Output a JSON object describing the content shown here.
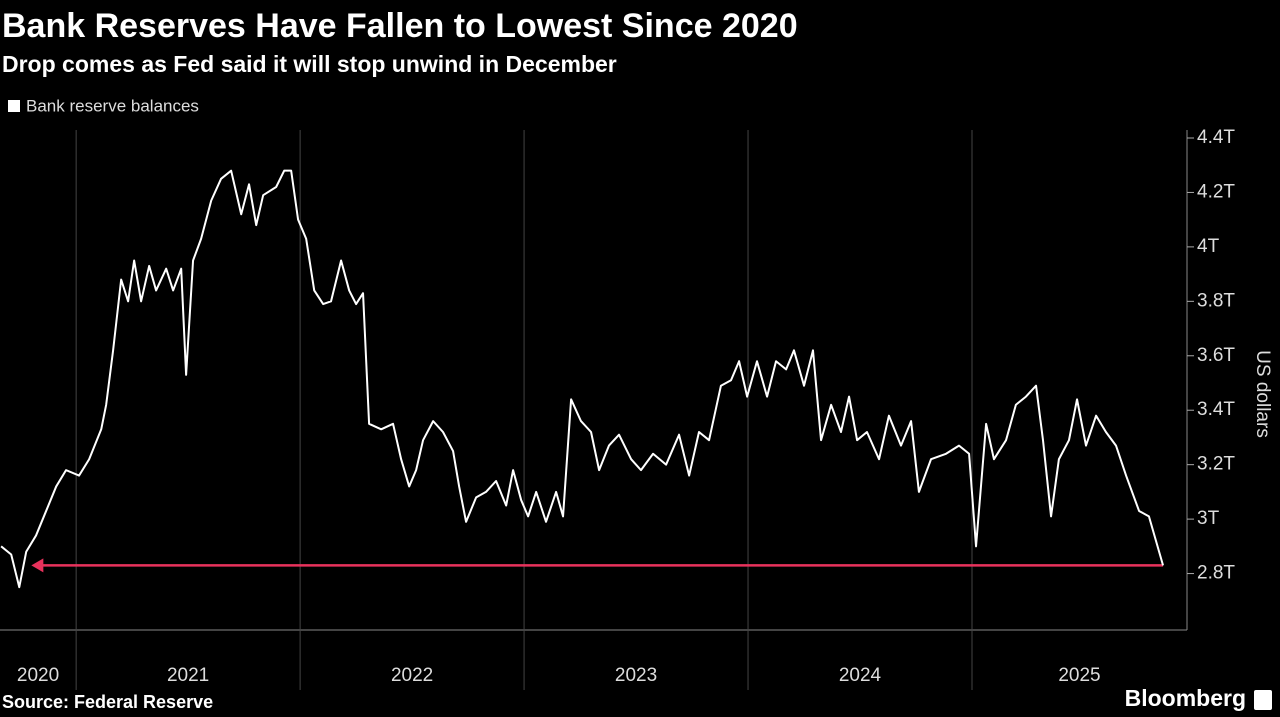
{
  "chart_data": {
    "type": "line",
    "title": "Bank Reserves Have Fallen to Lowest Since 2020",
    "subtitle": "Drop comes as Fed said it will stop unwind in December",
    "y_axis_label": "US dollars",
    "source": "Source: Federal Reserve",
    "brand": "Bloomberg",
    "xlim": [
      2020.66,
      2025.96
    ],
    "xticks": [
      2020,
      2021,
      2022,
      2023,
      2024,
      2025
    ],
    "ylim": [
      2.6,
      4.4
    ],
    "yticks": [
      {
        "value": 2.8,
        "label": "2.8T"
      },
      {
        "value": 3,
        "label": "3T"
      },
      {
        "value": 3.2,
        "label": "3.2T"
      },
      {
        "value": 3.4,
        "label": "3.4T"
      },
      {
        "value": 3.6,
        "label": "3.6T"
      },
      {
        "value": 3.8,
        "label": "3.8T"
      },
      {
        "value": 4,
        "label": "4T"
      },
      {
        "value": 4.2,
        "label": "4.2T"
      },
      {
        "value": 4.4,
        "label": "4.4T"
      }
    ],
    "grid": true,
    "arrow": {
      "from": 2025.853,
      "to": 2020.8,
      "value": 2.83,
      "color": "#e8325c"
    },
    "series": [
      {
        "name": "Bank reserve balances",
        "color": "#ffffff",
        "x": [
          2020.665,
          2020.71,
          2020.746,
          2020.777,
          2020.821,
          2020.866,
          2020.911,
          2020.955,
          2021.013,
          2021.058,
          2021.112,
          2021.134,
          2021.165,
          2021.201,
          2021.232,
          2021.259,
          2021.29,
          2021.326,
          2021.357,
          2021.402,
          2021.433,
          2021.469,
          2021.491,
          2021.522,
          2021.558,
          2021.603,
          2021.647,
          2021.692,
          2021.737,
          2021.772,
          2021.804,
          2021.835,
          2021.893,
          2021.929,
          2021.96,
          2021.991,
          2022.027,
          2022.063,
          2022.103,
          2022.138,
          2022.183,
          2022.219,
          2022.25,
          2022.281,
          2022.308,
          2022.362,
          2022.415,
          2022.451,
          2022.487,
          2022.518,
          2022.549,
          2022.594,
          2022.638,
          2022.683,
          2022.71,
          2022.741,
          2022.786,
          2022.83,
          2022.875,
          2022.92,
          2022.951,
          2022.987,
          2023.018,
          2023.054,
          2023.098,
          2023.143,
          2023.174,
          2023.21,
          2023.254,
          2023.299,
          2023.335,
          2023.379,
          2023.424,
          2023.478,
          2023.522,
          2023.576,
          2023.634,
          2023.692,
          2023.737,
          2023.781,
          2023.826,
          2023.879,
          2023.924,
          2023.96,
          2023.996,
          2024.04,
          2024.085,
          2024.125,
          2024.17,
          2024.205,
          2024.25,
          2024.29,
          2024.326,
          2024.371,
          2024.415,
          2024.451,
          2024.487,
          2024.531,
          2024.585,
          2024.629,
          2024.683,
          2024.728,
          2024.763,
          2024.817,
          2024.884,
          2024.942,
          2024.987,
          2025.018,
          2025.063,
          2025.098,
          2025.152,
          2025.196,
          2025.241,
          2025.286,
          2025.317,
          2025.353,
          2025.388,
          2025.433,
          2025.469,
          2025.509,
          2025.554,
          2025.598,
          2025.643,
          2025.688,
          2025.746,
          2025.79,
          2025.853
        ],
        "values": [
          2.9,
          2.87,
          2.75,
          2.88,
          2.94,
          3.03,
          3.12,
          3.18,
          3.16,
          3.22,
          3.33,
          3.42,
          3.62,
          3.88,
          3.8,
          3.95,
          3.8,
          3.93,
          3.84,
          3.92,
          3.84,
          3.92,
          3.53,
          3.95,
          4.03,
          4.17,
          4.25,
          4.28,
          4.12,
          4.23,
          4.08,
          4.19,
          4.22,
          4.28,
          4.28,
          4.1,
          4.03,
          3.84,
          3.79,
          3.8,
          3.95,
          3.84,
          3.79,
          3.83,
          3.35,
          3.33,
          3.35,
          3.22,
          3.12,
          3.18,
          3.29,
          3.36,
          3.32,
          3.25,
          3.12,
          2.99,
          3.08,
          3.1,
          3.14,
          3.05,
          3.18,
          3.07,
          3.01,
          3.1,
          2.99,
          3.1,
          3.01,
          3.44,
          3.36,
          3.32,
          3.18,
          3.27,
          3.31,
          3.22,
          3.18,
          3.24,
          3.2,
          3.31,
          3.16,
          3.32,
          3.29,
          3.49,
          3.51,
          3.58,
          3.45,
          3.58,
          3.45,
          3.58,
          3.55,
          3.62,
          3.49,
          3.62,
          3.29,
          3.42,
          3.32,
          3.45,
          3.29,
          3.32,
          3.22,
          3.38,
          3.27,
          3.36,
          3.1,
          3.22,
          3.24,
          3.27,
          3.24,
          2.9,
          3.35,
          3.22,
          3.29,
          3.42,
          3.45,
          3.49,
          3.29,
          3.01,
          3.22,
          3.29,
          3.44,
          3.27,
          3.38,
          3.32,
          3.27,
          3.16,
          3.03,
          3.01,
          2.83
        ]
      }
    ]
  }
}
